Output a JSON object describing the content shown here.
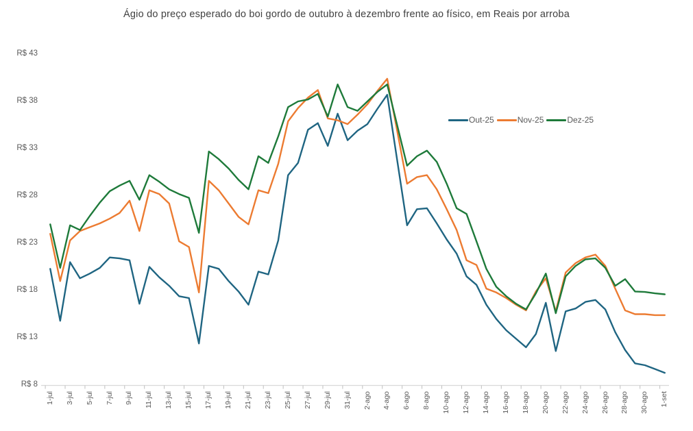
{
  "title": "Ágio do preço esperado do boi gordo de outubro à dezembro frente ao físico, em Reais por arroba",
  "colors": {
    "out25": "#1f6582",
    "nov25": "#ec7b31",
    "dez25": "#1e7a3a",
    "axis_line": "#d9d9d9",
    "tick": "#bfbfbf",
    "label_text": "#595959",
    "title_text": "#404040",
    "background": "#ffffff"
  },
  "chart_data": {
    "type": "line",
    "title": "Ágio do preço esperado do boi gordo de outubro à dezembro frente ao físico, em Reais por arroba",
    "xlabel": "",
    "ylabel": "Reais por arroba",
    "ylim": [
      8,
      43
    ],
    "grid": false,
    "legend_position": "center-right",
    "y_tick_values": [
      43,
      38,
      33,
      28,
      23,
      18,
      13,
      8
    ],
    "y_tick_labels": [
      "R$ 43",
      "R$ 38",
      "R$ 33",
      "R$ 28",
      "R$ 23",
      "R$ 18",
      "R$ 13",
      "R$ 8"
    ],
    "x_labels_shown": [
      "1-jul",
      "3-jul",
      "5-jul",
      "7-jul",
      "9-jul",
      "11-jul",
      "13-jul",
      "15-jul",
      "17-jul",
      "19-jul",
      "21-jul",
      "23-jul",
      "25-jul",
      "27-jul",
      "29-jul",
      "31-jul",
      "2-ago",
      "4-ago",
      "6-ago",
      "8-ago",
      "10-ago",
      "12-ago",
      "14-ago",
      "16-ago",
      "18-ago",
      "20-ago",
      "22-ago",
      "24-ago",
      "26-ago",
      "28-ago",
      "30-ago",
      "1-set"
    ],
    "categories": [
      "1-jul",
      "2-jul",
      "3-jul",
      "4-jul",
      "5-jul",
      "6-jul",
      "7-jul",
      "8-jul",
      "9-jul",
      "10-jul",
      "11-jul",
      "12-jul",
      "13-jul",
      "14-jul",
      "15-jul",
      "16-jul",
      "17-jul",
      "18-jul",
      "19-jul",
      "20-jul",
      "21-jul",
      "22-jul",
      "23-jul",
      "24-jul",
      "25-jul",
      "26-jul",
      "27-jul",
      "28-jul",
      "29-jul",
      "30-jul",
      "31-jul",
      "1-ago",
      "2-ago",
      "3-ago",
      "4-ago",
      "5-ago",
      "6-ago",
      "7-ago",
      "8-ago",
      "9-ago",
      "10-ago",
      "11-ago",
      "12-ago",
      "13-ago",
      "14-ago",
      "15-ago",
      "16-ago",
      "17-ago",
      "18-ago",
      "19-ago",
      "20-ago",
      "21-ago",
      "22-ago",
      "23-ago",
      "24-ago",
      "25-ago",
      "26-ago",
      "27-ago",
      "28-ago",
      "29-ago",
      "30-ago",
      "31-ago",
      "1-set"
    ],
    "series": [
      {
        "name": "Out-25",
        "color_key": "out25",
        "values": [
          20.3,
          14.8,
          21.0,
          19.3,
          19.8,
          20.4,
          21.5,
          21.4,
          21.2,
          16.6,
          20.5,
          19.4,
          18.5,
          17.4,
          17.2,
          12.4,
          20.6,
          20.3,
          19.0,
          17.9,
          16.5,
          20.0,
          19.7,
          23.3,
          30.2,
          31.5,
          35.0,
          35.7,
          33.3,
          36.7,
          33.9,
          34.9,
          35.6,
          37.2,
          38.7,
          31.8,
          24.9,
          26.6,
          26.7,
          25.1,
          23.4,
          21.9,
          19.5,
          18.6,
          16.5,
          15.0,
          13.8,
          12.9,
          12.0,
          13.4,
          16.7,
          11.6,
          15.8,
          16.1,
          16.8,
          17.0,
          16.0,
          13.6,
          11.7,
          10.3,
          10.1,
          9.7,
          9.3
        ]
      },
      {
        "name": "Nov-25",
        "color_key": "nov25",
        "values": [
          24.0,
          19.0,
          23.3,
          24.3,
          24.7,
          25.1,
          25.6,
          26.2,
          27.5,
          24.3,
          28.6,
          28.2,
          27.2,
          23.2,
          22.6,
          17.8,
          29.6,
          28.6,
          27.2,
          25.8,
          25.0,
          28.6,
          28.3,
          31.4,
          35.9,
          37.3,
          38.4,
          39.2,
          36.2,
          36.0,
          35.6,
          36.6,
          37.7,
          39.1,
          40.4,
          34.9,
          29.3,
          30.0,
          30.2,
          28.7,
          26.6,
          24.4,
          21.2,
          20.7,
          18.2,
          17.8,
          17.2,
          16.5,
          15.9,
          17.9,
          19.3,
          15.8,
          19.9,
          20.9,
          21.5,
          21.8,
          20.6,
          18.2,
          15.9,
          15.5,
          15.5,
          15.4,
          15.4
        ]
      },
      {
        "name": "Dez-25",
        "color_key": "dez25",
        "values": [
          25.0,
          20.4,
          24.9,
          24.4,
          25.9,
          27.3,
          28.5,
          29.1,
          29.6,
          27.6,
          30.2,
          29.5,
          28.7,
          28.2,
          27.8,
          24.1,
          32.7,
          31.9,
          30.9,
          29.7,
          28.7,
          32.2,
          31.5,
          34.3,
          37.4,
          38.0,
          38.2,
          38.8,
          36.4,
          39.8,
          37.4,
          37.0,
          38.0,
          39.0,
          39.8,
          35.5,
          31.2,
          32.2,
          32.8,
          31.6,
          29.3,
          26.7,
          26.1,
          23.2,
          20.3,
          18.4,
          17.4,
          16.6,
          16.0,
          17.7,
          19.8,
          15.6,
          19.5,
          20.6,
          21.3,
          21.4,
          20.4,
          18.5,
          19.2,
          17.9,
          17.85,
          17.7,
          17.6
        ]
      }
    ]
  }
}
